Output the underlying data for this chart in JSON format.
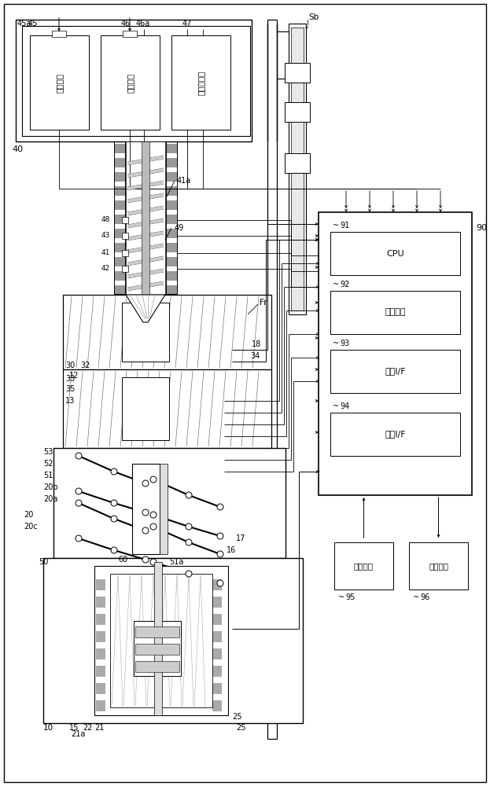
{
  "bg_color": "#ffffff",
  "lc": "#000000",
  "labels": {
    "cpu": "CPU",
    "mem": "存储介质",
    "in_if": "输入I/F",
    "out_if": "输出I/F",
    "in_dev": "输入装置",
    "out_dev": "输出装置",
    "meter_motor": "计量马达",
    "inject_motor": "注射马达",
    "pressure": "压力检测器",
    "n45a": "45a",
    "n45": "45",
    "n46": "46",
    "n46a": "46a",
    "n47": "47",
    "n40": "40",
    "n41a": "41a",
    "n49": "49",
    "n48": "48",
    "n43": "43",
    "n41": "41",
    "n42": "42",
    "n12": "12",
    "n18": "18",
    "n30": "30",
    "n32": "32",
    "n33": "33",
    "n35": "35",
    "n13": "13",
    "n53": "53",
    "n52": "52",
    "n51": "51",
    "n20b": "20b",
    "n20a": "20a",
    "n51a": "51a",
    "n60": "60",
    "n20": "20",
    "n20c": "20c",
    "n16": "16",
    "n17": "17",
    "n15": "15",
    "n22": "22",
    "n21": "21",
    "n21a": "21a",
    "n25": "25",
    "n10": "10",
    "n50": "50",
    "n34": "34",
    "nSb": "Sb",
    "nFr": "Fr",
    "n90": "90",
    "n91": "91",
    "n92": "92",
    "n93": "93",
    "n94": "94",
    "n95": "95",
    "n96": "96"
  }
}
